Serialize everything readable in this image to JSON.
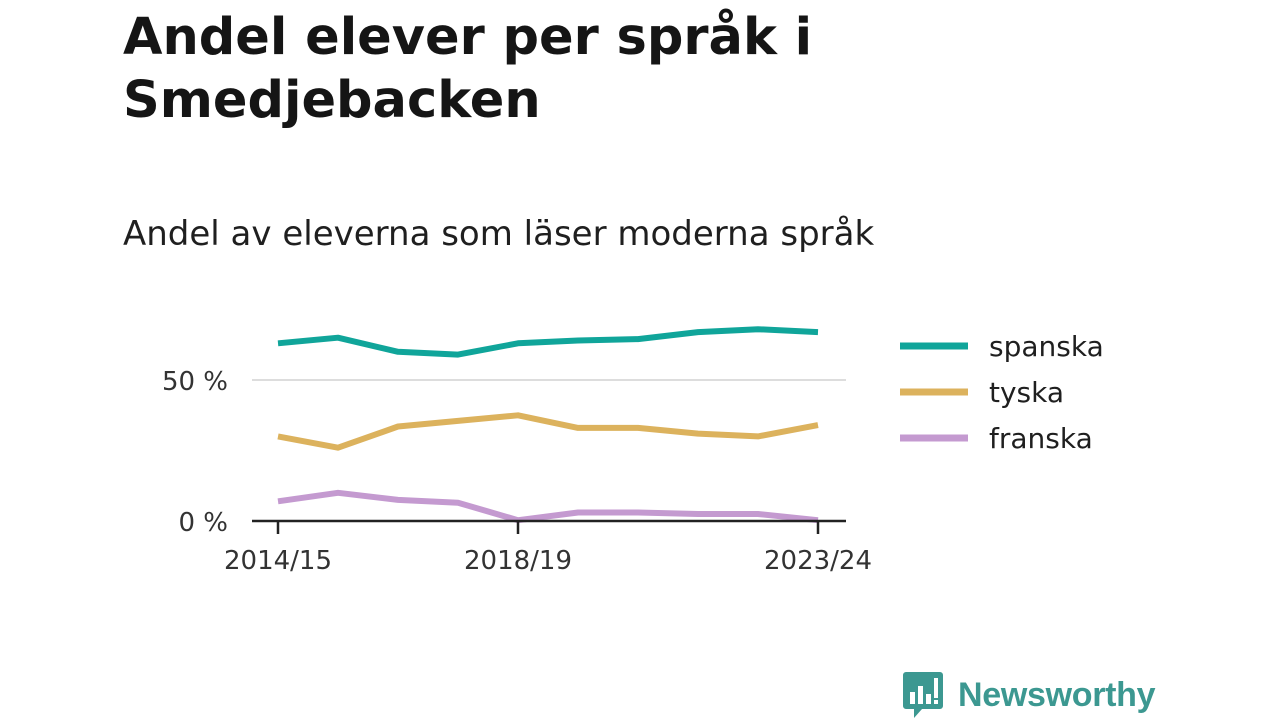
{
  "header": {
    "title": "Andel elever per språk i Smedjebacken",
    "subtitle": "Andel av eleverna som läser moderna språk"
  },
  "brand": {
    "name": "Newsworthy",
    "icon": "newsworthy-logo-icon",
    "color": "#3c9891"
  },
  "chart_data": {
    "type": "line",
    "x": [
      "2014/15",
      "2015/16",
      "2016/17",
      "2017/18",
      "2018/19",
      "2019/20",
      "2020/21",
      "2021/22",
      "2022/23",
      "2023/24"
    ],
    "x_tick_labels": [
      "2014/15",
      "2018/19",
      "2023/24"
    ],
    "y_ticks": [
      0,
      50
    ],
    "y_tick_labels": [
      "0 %",
      "50 %"
    ],
    "ylim": [
      0,
      72
    ],
    "grid": true,
    "legend": "right",
    "series": [
      {
        "name": "spanska",
        "color": "#10a59a",
        "values": [
          63,
          65,
          60,
          59,
          63,
          64,
          64.5,
          67,
          68,
          67
        ]
      },
      {
        "name": "tyska",
        "color": "#dcb25d",
        "values": [
          30,
          26,
          33.5,
          35.5,
          37.5,
          33,
          33,
          31,
          30,
          34
        ]
      },
      {
        "name": "franska",
        "color": "#c49ad0",
        "values": [
          7,
          10,
          7.5,
          6.5,
          0.3,
          3,
          3,
          2.5,
          2.5,
          0.3
        ]
      }
    ]
  }
}
